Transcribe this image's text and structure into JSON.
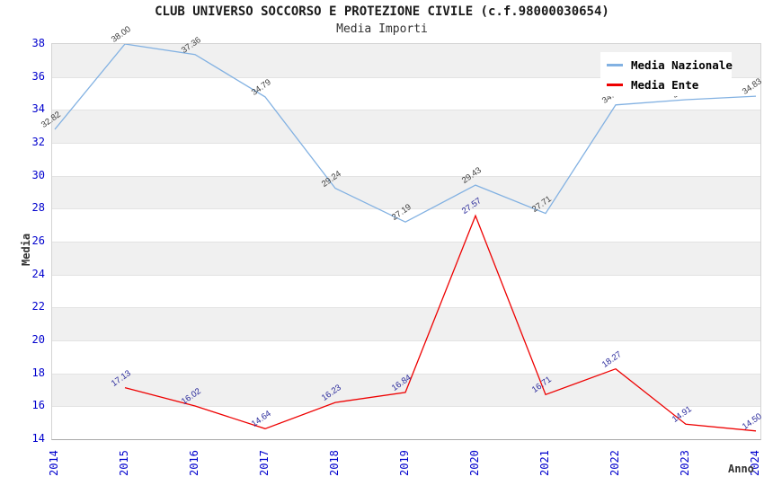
{
  "header": {
    "title": "CLUB UNIVERSO SOCCORSO E PROTEZIONE CIVILE (c.f.98000030654)",
    "subtitle": "Media Importi"
  },
  "axes": {
    "y_label": "Media",
    "x_label": "Anno",
    "y_ticks": [
      14,
      16,
      18,
      20,
      22,
      24,
      26,
      28,
      30,
      32,
      34,
      36,
      38
    ],
    "x_ticks": [
      "2014",
      "2015",
      "2016",
      "2017",
      "2018",
      "2019",
      "2020",
      "2021",
      "2022",
      "2023",
      "2024"
    ],
    "tick_color": "#0000cd"
  },
  "legend": {
    "position": "top-right",
    "items": [
      {
        "name": "Media Nazionale",
        "color": "#82b1e2"
      },
      {
        "name": "Media Ente",
        "color": "#ee0000"
      }
    ]
  },
  "style": {
    "band_color": "#f0f0f0",
    "grid_color": "#e3e3e3",
    "background": "#ffffff"
  },
  "chart_data": {
    "type": "line",
    "title": "CLUB UNIVERSO SOCCORSO E PROTEZIONE CIVILE (c.f.98000030654)",
    "subtitle": "Media Importi",
    "xlabel": "Anno",
    "ylabel": "Media",
    "ylim": [
      14,
      38
    ],
    "x": [
      2014,
      2015,
      2016,
      2017,
      2018,
      2019,
      2020,
      2021,
      2022,
      2023,
      2024
    ],
    "grid": "alternating-horizontal-bands-every-2",
    "legend_position": "top-right",
    "series": [
      {
        "name": "Media Nazionale",
        "color": "#82b1e2",
        "label_color": "#3c3c3c",
        "points": [
          {
            "x": 2014,
            "y": 32.82,
            "label": "32.82"
          },
          {
            "x": 2015,
            "y": 38.0,
            "label": "38.00"
          },
          {
            "x": 2016,
            "y": 37.36,
            "label": "37.36"
          },
          {
            "x": 2017,
            "y": 34.79,
            "label": "34.79"
          },
          {
            "x": 2018,
            "y": 29.24,
            "label": "29.24"
          },
          {
            "x": 2019,
            "y": 27.19,
            "label": "27.19"
          },
          {
            "x": 2020,
            "y": 29.43,
            "label": "29.43"
          },
          {
            "x": 2021,
            "y": 27.71,
            "label": "27.71"
          },
          {
            "x": 2022,
            "y": 34.3,
            "label": "34.30"
          },
          {
            "x": 2023,
            "y": 34.62,
            "label": "34.62"
          },
          {
            "x": 2024,
            "y": 34.83,
            "label": "34.83"
          }
        ]
      },
      {
        "name": "Media Ente",
        "color": "#ee0000",
        "label_color": "#28289a",
        "points": [
          {
            "x": 2015,
            "y": 17.13,
            "label": "17.13"
          },
          {
            "x": 2016,
            "y": 16.02,
            "label": "16.02"
          },
          {
            "x": 2017,
            "y": 14.64,
            "label": "14.64"
          },
          {
            "x": 2018,
            "y": 16.23,
            "label": "16.23"
          },
          {
            "x": 2019,
            "y": 16.84,
            "label": "16.84"
          },
          {
            "x": 2020,
            "y": 27.57,
            "label": "27.57"
          },
          {
            "x": 2021,
            "y": 16.71,
            "label": "16.71"
          },
          {
            "x": 2022,
            "y": 18.27,
            "label": "18.27"
          },
          {
            "x": 2023,
            "y": 14.91,
            "label": "14.91"
          },
          {
            "x": 2024,
            "y": 14.5,
            "label": "14.50"
          }
        ]
      }
    ]
  }
}
